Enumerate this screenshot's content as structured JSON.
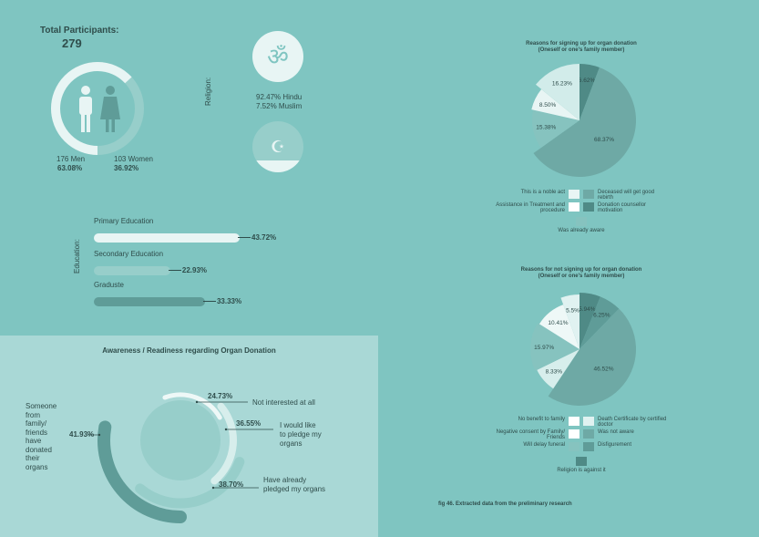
{
  "participants": {
    "title": "Total Participants:",
    "count": "279",
    "men_label": "176 Men",
    "men_pct": "63.08%",
    "women_label": "103 Women",
    "women_pct": "36.92%"
  },
  "religion": {
    "axis_label": "Religion:",
    "hindu": "92.47% Hindu",
    "muslim": "7.52% Muslim",
    "om_glyph": "ॐ",
    "crescent_glyph": "☪"
  },
  "education": {
    "axis_label": "Education:",
    "rows": [
      {
        "label": "Primary Education",
        "value": 43.72,
        "text": "43.72%"
      },
      {
        "label": "Secondary Education",
        "value": 22.93,
        "text": "22.93%"
      },
      {
        "label": "Graduste",
        "value": 33.33,
        "text": "33.33%"
      }
    ]
  },
  "awareness": {
    "title": "Awareness / Readiness regarding Organ Donation",
    "family_label": [
      "Someone",
      "from",
      "family/",
      "friends",
      "have",
      "donated",
      "their",
      "organs"
    ],
    "family_pct": "41.93%",
    "items": [
      {
        "pct": "24.73%",
        "label": "Not interested at all"
      },
      {
        "pct": "36.55%",
        "label": "I would like to pledge my organs",
        "lines": [
          "I would like",
          "to pledge my",
          "organs"
        ]
      },
      {
        "pct": "38.70%",
        "label": "Have already pledged my organs",
        "lines": [
          "Have already",
          "pledged my organs"
        ]
      }
    ]
  },
  "footer": {
    "caption": "fig 46. Extracted data from the preliminary research"
  },
  "chart_data": [
    {
      "type": "pie",
      "title": "Reasons for signing up for organ donation",
      "subtitle": "(Oneself or one's family member)",
      "categories": [
        "Was already aware",
        "Deceased will get good rebirth",
        "Assistance in Treatment and procedure",
        "This is a noble act",
        "Donation counsellor motivation"
      ],
      "values": [
        6.62,
        68.37,
        15.38,
        8.5,
        16.23
      ],
      "labels": [
        "6.62%",
        "68.37%",
        "15.38%",
        "8.50%",
        "16.23%"
      ],
      "legend_left": [
        "This is a noble act",
        "Assistance in Treatment and procedure"
      ],
      "legend_right": [
        "Deceased will get good rebirth",
        "Donation counsellor motivation"
      ],
      "legend_bottom": "Was already aware"
    },
    {
      "type": "pie",
      "title": "Reasons for not signing up for organ donation",
      "subtitle": "(Oneself or one's family member)",
      "values": [
        5.94,
        6.25,
        46.52,
        8.33,
        15.97,
        10.41,
        5.5
      ],
      "labels": [
        "5.94%",
        "6.25%",
        "46.52%",
        "8.33%",
        "15.97%",
        "10.41%",
        "5.5%"
      ],
      "legend_left": [
        "No benefit to family",
        "Negative consent by Family/ Friends",
        "Will delay funeral"
      ],
      "legend_right": [
        "Death Certificate by certified doctor",
        "Was not aware",
        "Disfigurement"
      ],
      "legend_bottom": "Religion is against it"
    }
  ]
}
